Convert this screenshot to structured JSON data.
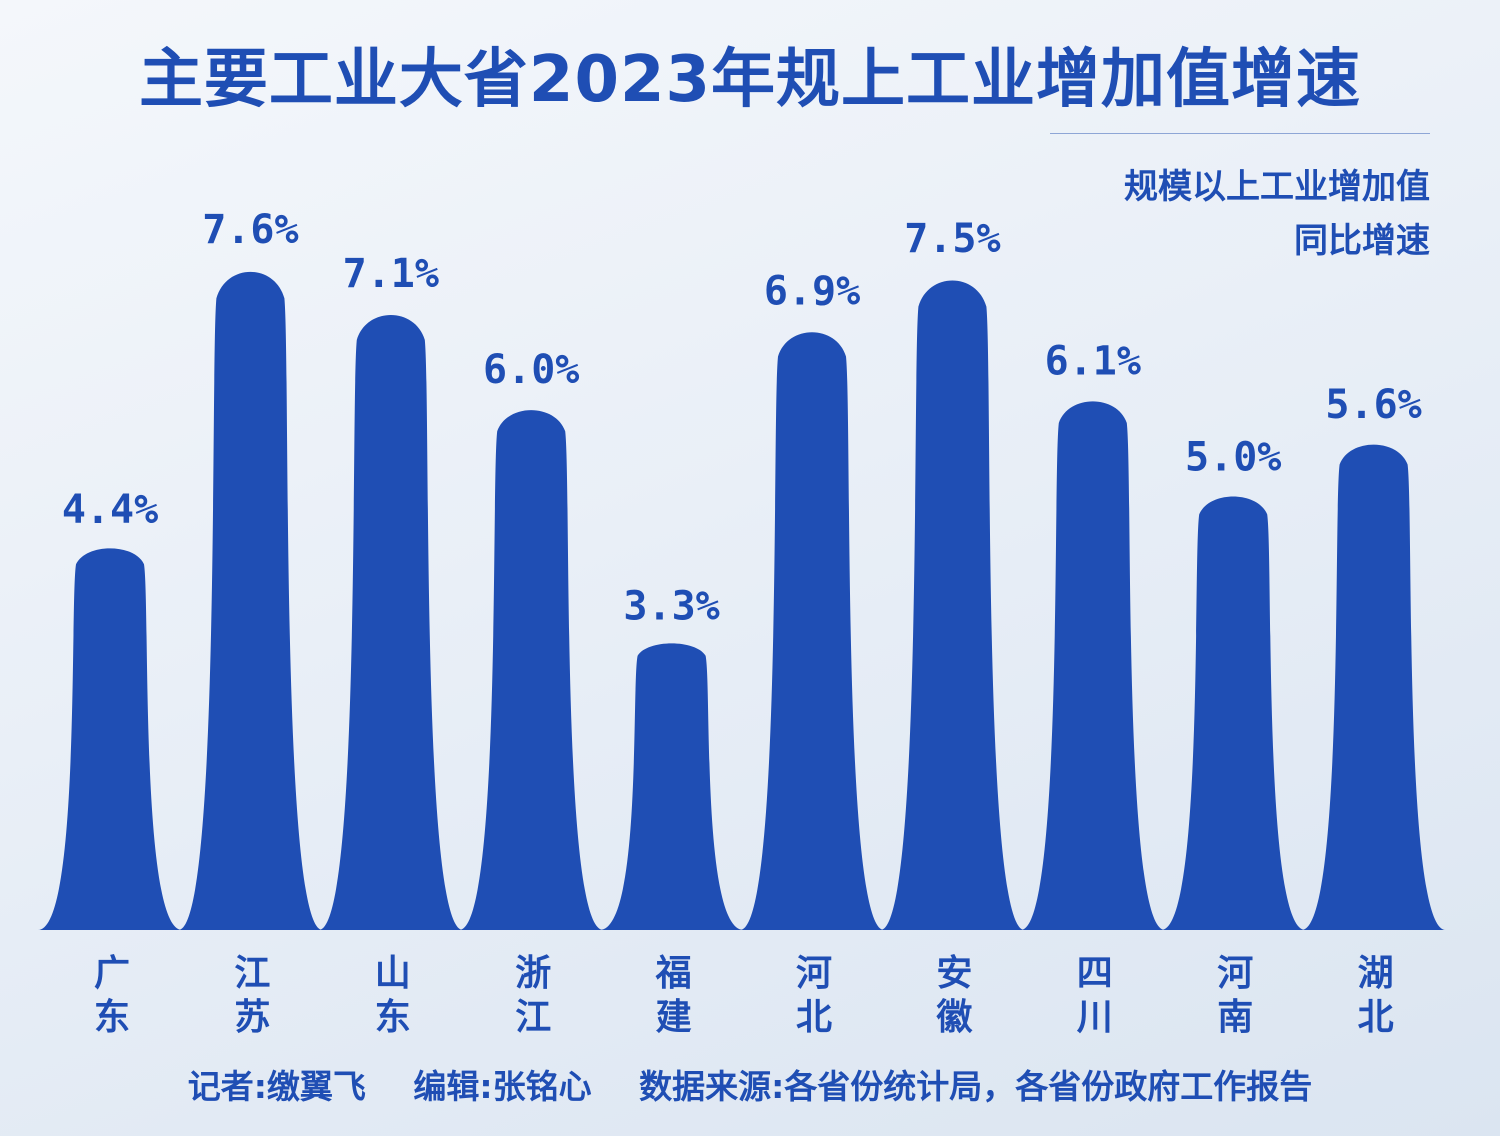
{
  "header": {
    "title": "主要工业大省2023年规上工业增加值增速",
    "note_line1": "规模以上工业增加值",
    "note_line2": "同比增速"
  },
  "footer": {
    "reporter": "记者:缴翼飞",
    "editor": "编辑:张铭心",
    "source": "数据来源:各省份统计局，各省份政府工作报告"
  },
  "colors": {
    "accent": "#1f4eb4",
    "bar": "#1f4eb4"
  },
  "chart_data": {
    "type": "bar",
    "categories": [
      "广东",
      "江苏",
      "山东",
      "浙江",
      "福建",
      "河北",
      "安徽",
      "四川",
      "河南",
      "湖北"
    ],
    "values": [
      4.4,
      7.6,
      7.1,
      6.0,
      3.3,
      6.9,
      7.5,
      6.1,
      5.0,
      5.6
    ],
    "value_labels": [
      "4.4%",
      "7.6%",
      "7.1%",
      "6.0%",
      "3.3%",
      "6.9%",
      "7.5%",
      "6.1%",
      "5.0%",
      "5.6%"
    ],
    "title": "主要工业大省2023年规上工业增加值增速",
    "ylabel": "",
    "ylim": [
      0,
      7.6
    ],
    "grid": false,
    "legend": "none"
  }
}
